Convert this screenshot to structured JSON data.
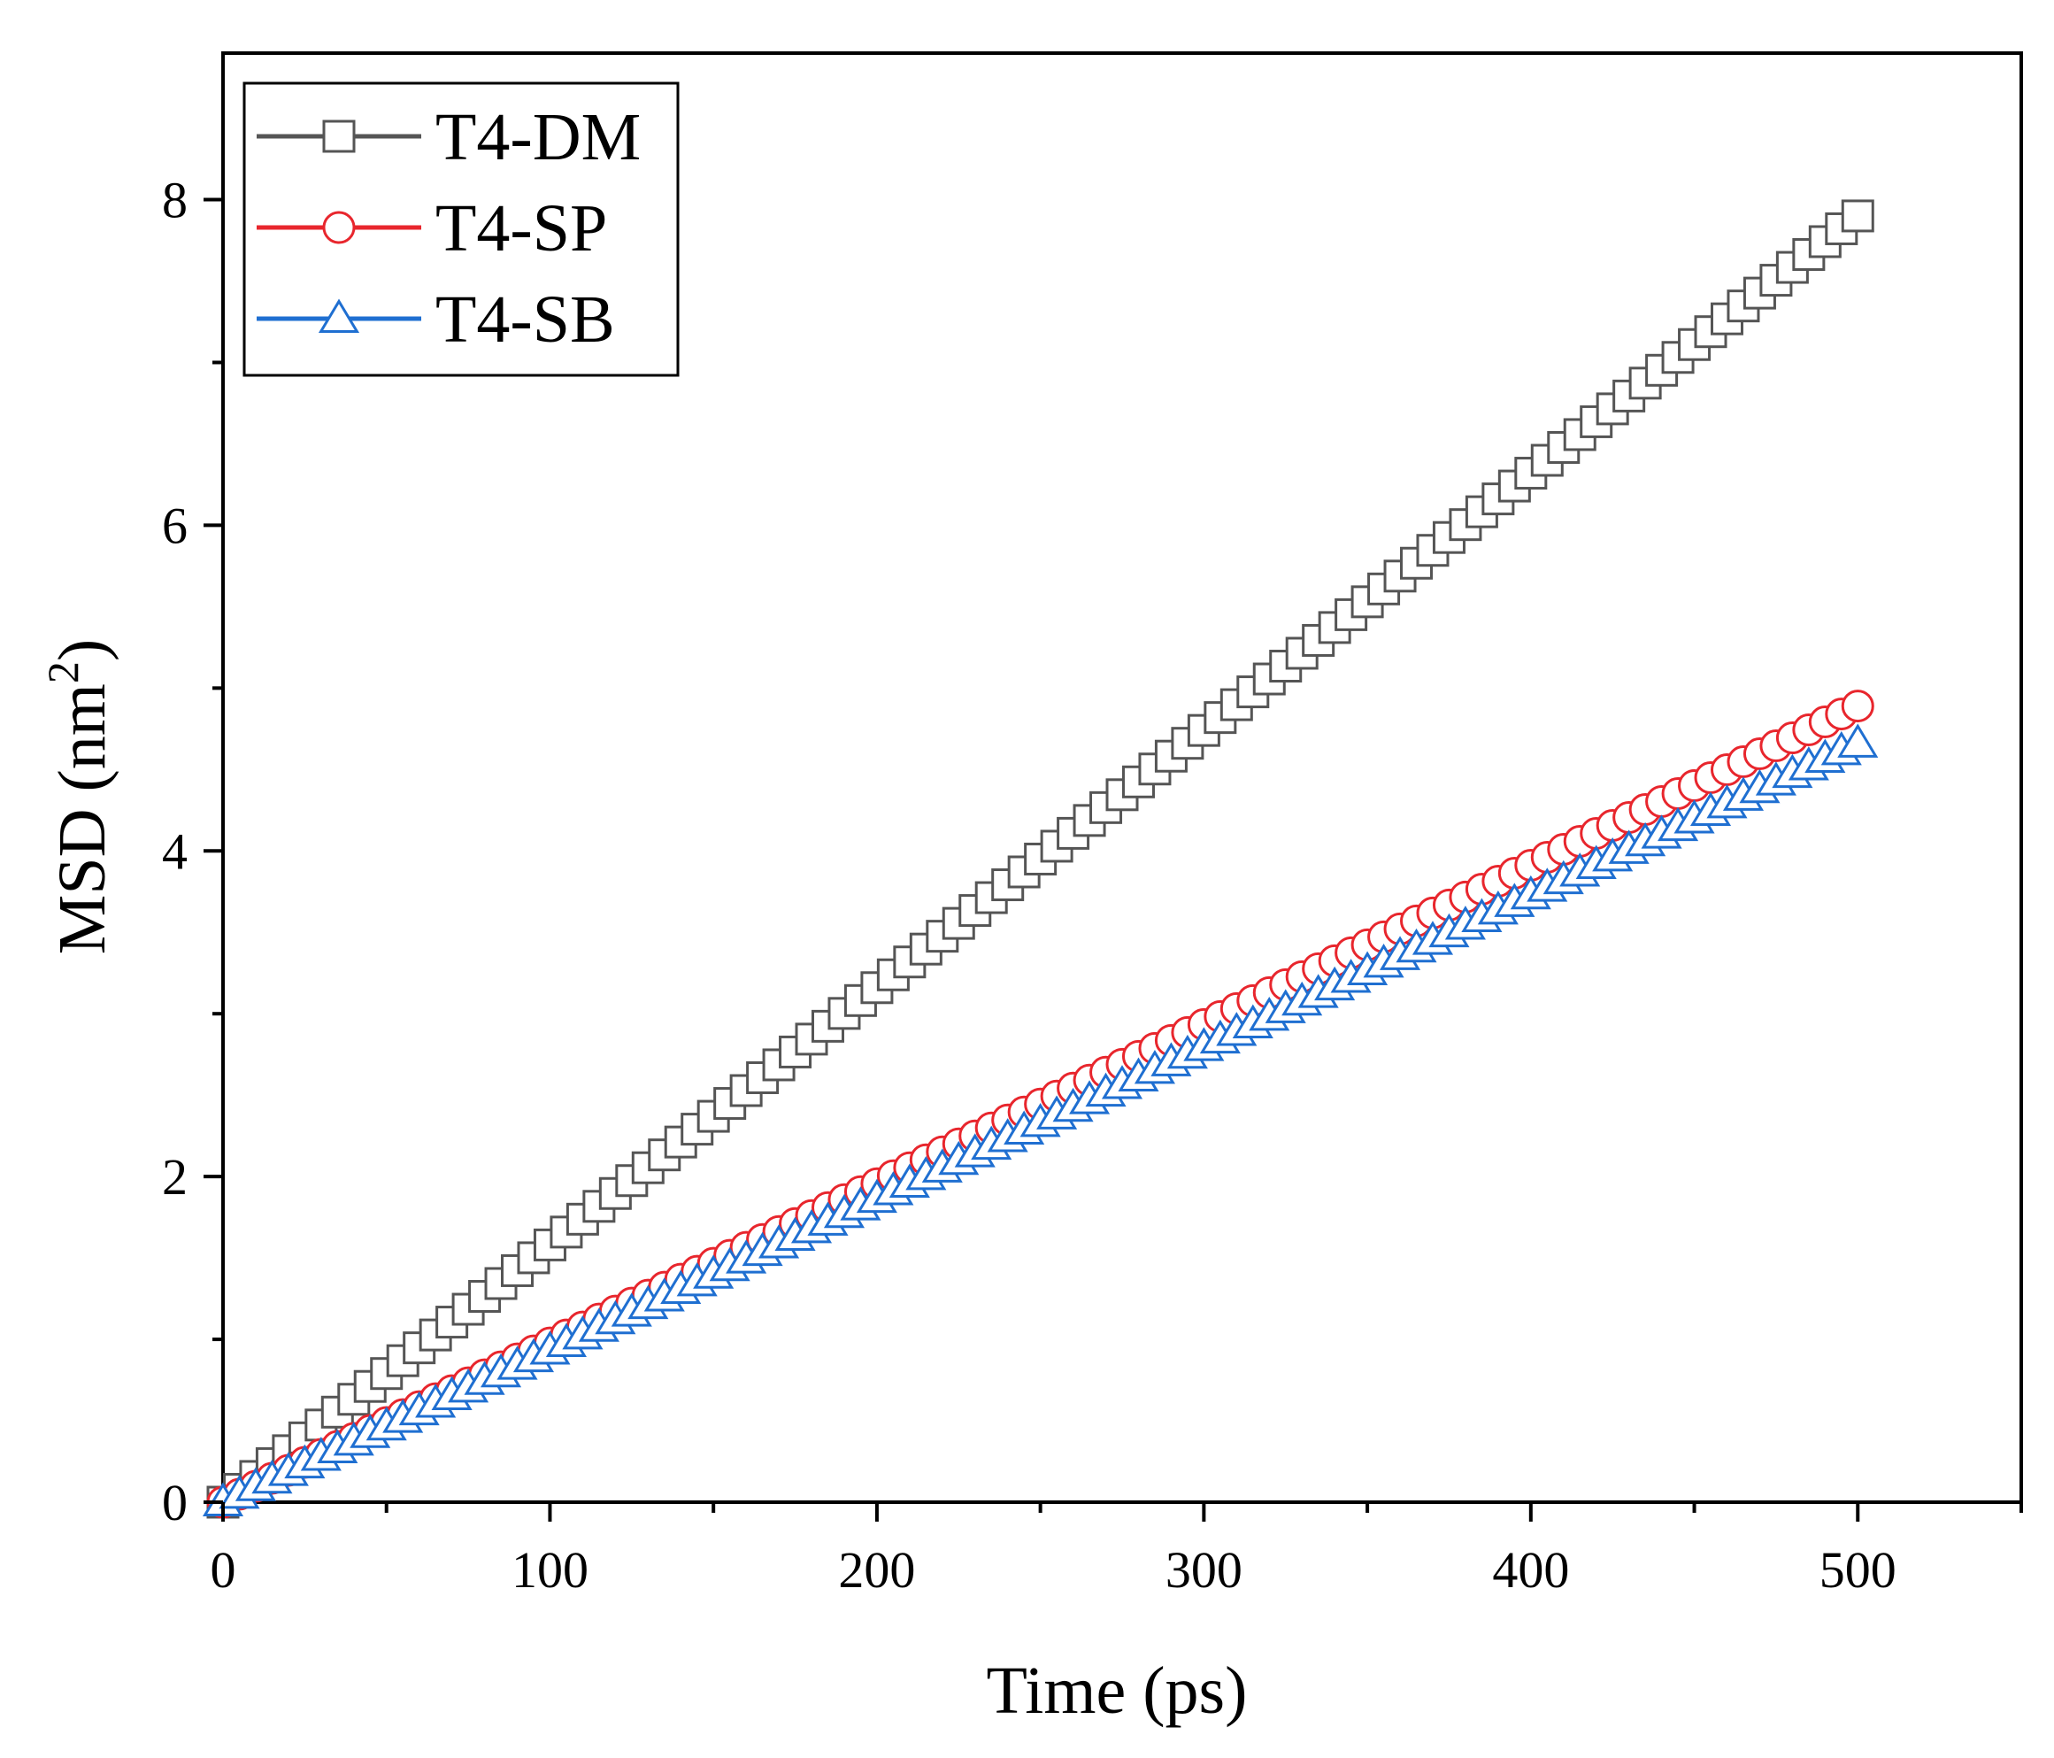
{
  "chart_data": {
    "type": "scatter",
    "xlabel": "Time (ps)",
    "ylabel_main": "MSD (nm",
    "ylabel_sup": "2",
    "ylabel_close": ")",
    "xlim": [
      0,
      550
    ],
    "ylim": [
      0,
      8.9
    ],
    "x_ticks": [
      0,
      100,
      200,
      300,
      400,
      500
    ],
    "x_minor_ticks": [
      50,
      150,
      250,
      350,
      450,
      550
    ],
    "y_ticks": [
      0,
      2,
      4,
      6,
      8
    ],
    "y_minor_ticks": [
      1,
      3,
      5,
      7
    ],
    "x_tick_labels": [
      "0",
      "100",
      "200",
      "300",
      "400",
      "500"
    ],
    "y_tick_labels": [
      "0",
      "2",
      "4",
      "6",
      "8"
    ],
    "grid": false,
    "legend_position": "top-left",
    "x": {
      "start": 0,
      "end": 500,
      "step": 5
    },
    "series": [
      {
        "name": "T4-DM",
        "marker": "square",
        "color": "#555555",
        "slope": 0.0158,
        "final": 7.9
      },
      {
        "name": "T4-SP",
        "marker": "circle",
        "color": "#e8262d",
        "slope": 0.00978,
        "final": 4.89
      },
      {
        "name": "T4-SB",
        "marker": "triangle",
        "color": "#1f6fd1",
        "slope": 0.00932,
        "final": 4.66
      }
    ]
  }
}
